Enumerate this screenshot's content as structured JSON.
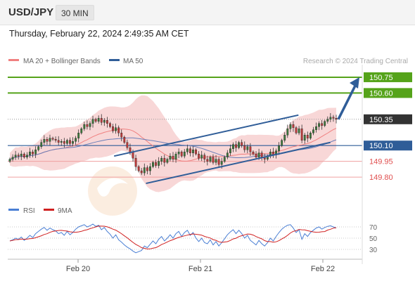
{
  "header": {
    "symbol": "USD/JPY",
    "timeframe": "30 MIN",
    "datetime": "Thursday, February 22, 2024 2:49:35 AM CET"
  },
  "legend": {
    "ma20": "MA 20 + Bollinger Bands",
    "ma50": "MA 50",
    "credit": "Research © 2024 Trading Central",
    "rsi": "RSI",
    "rsi_ma": "9MA"
  },
  "colors": {
    "green": "#55a31a",
    "blue": "#2f5d98",
    "red": "#e05050",
    "ma20": "#f08080",
    "band": "#f6c9c9",
    "current": "#333333"
  },
  "chart_data": {
    "type": "candlestick",
    "symbol": "USD/JPY",
    "interval": "30 MIN",
    "x_ticks": [
      "Feb 20",
      "Feb 21",
      "Feb 22"
    ],
    "ylim": [
      149.56,
      150.87
    ],
    "levels": [
      {
        "value": 150.75,
        "label": "150.75",
        "kind": "resistance",
        "color": "#55a31a"
      },
      {
        "value": 150.6,
        "label": "150.60",
        "kind": "resistance",
        "color": "#55a31a"
      },
      {
        "value": 150.35,
        "label": "150.35",
        "kind": "current",
        "color": "#333333"
      },
      {
        "value": 150.1,
        "label": "150.10",
        "kind": "pivot",
        "color": "#2f5d98"
      },
      {
        "value": 149.95,
        "label": "149.95",
        "kind": "support",
        "color": "#e05050"
      },
      {
        "value": 149.8,
        "label": "149.80",
        "kind": "support",
        "color": "#e05050"
      }
    ],
    "channel": {
      "upper": [
        [
          0.3,
          150.0
        ],
        [
          0.82,
          150.39
        ]
      ],
      "lower": [
        [
          0.39,
          149.74
        ],
        [
          0.91,
          150.13
        ]
      ]
    },
    "forecast_arrow": {
      "from": 150.35,
      "to": 150.75
    },
    "closes": [
      149.97,
      149.99,
      150.01,
      150.0,
      150.02,
      149.99,
      150.01,
      150.04,
      150.02,
      150.06,
      150.09,
      150.13,
      150.16,
      150.14,
      150.17,
      150.16,
      150.15,
      150.13,
      150.14,
      150.12,
      150.15,
      150.12,
      150.14,
      150.17,
      150.22,
      150.26,
      150.3,
      150.28,
      150.31,
      150.35,
      150.33,
      150.36,
      150.32,
      150.34,
      150.31,
      150.28,
      150.24,
      150.27,
      150.22,
      150.18,
      150.13,
      150.08,
      150.04,
      149.98,
      149.9,
      149.86,
      149.84,
      149.89,
      149.86,
      149.9,
      149.94,
      149.91,
      149.95,
      149.98,
      149.94,
      149.97,
      150.0,
      149.97,
      150.02,
      150.04,
      150.0,
      150.04,
      150.07,
      150.03,
      150.06,
      150.02,
      149.98,
      150.01,
      149.97,
      149.95,
      149.99,
      149.94,
      149.97,
      149.92,
      149.95,
      149.99,
      150.03,
      150.07,
      150.11,
      150.08,
      150.13,
      150.1,
      150.06,
      150.09,
      150.04,
      150.02,
      149.99,
      150.03,
      149.99,
      149.97,
      150.0,
      150.04,
      150.01,
      150.05,
      150.1,
      150.15,
      150.2,
      150.26,
      150.3,
      150.27,
      150.22,
      150.26,
      150.15,
      150.2,
      150.17,
      150.22,
      150.25,
      150.28,
      150.31,
      150.29,
      150.33,
      150.35,
      150.37,
      150.36,
      150.35
    ],
    "rsi": {
      "ylim": [
        20,
        80
      ],
      "ticks": [
        30,
        50,
        70
      ],
      "values": [
        45,
        47,
        50,
        48,
        52,
        46,
        50,
        55,
        51,
        58,
        62,
        66,
        69,
        64,
        68,
        65,
        63,
        58,
        60,
        55,
        62,
        56,
        60,
        66,
        70,
        72,
        74,
        70,
        72,
        75,
        71,
        73,
        65,
        69,
        62,
        57,
        50,
        56,
        47,
        43,
        38,
        34,
        31,
        27,
        24,
        26,
        28,
        36,
        33,
        39,
        45,
        40,
        48,
        53,
        45,
        50,
        56,
        50,
        58,
        62,
        53,
        60,
        64,
        55,
        60,
        50,
        44,
        50,
        42,
        40,
        47,
        38,
        44,
        36,
        42,
        49,
        56,
        61,
        65,
        58,
        64,
        58,
        50,
        55,
        46,
        42,
        38,
        46,
        40,
        36,
        42,
        50,
        45,
        53,
        60,
        66,
        70,
        73,
        74,
        68,
        60,
        65,
        48,
        58,
        53,
        60,
        64,
        68,
        70,
        66,
        69,
        71,
        72,
        70,
        68
      ]
    }
  }
}
